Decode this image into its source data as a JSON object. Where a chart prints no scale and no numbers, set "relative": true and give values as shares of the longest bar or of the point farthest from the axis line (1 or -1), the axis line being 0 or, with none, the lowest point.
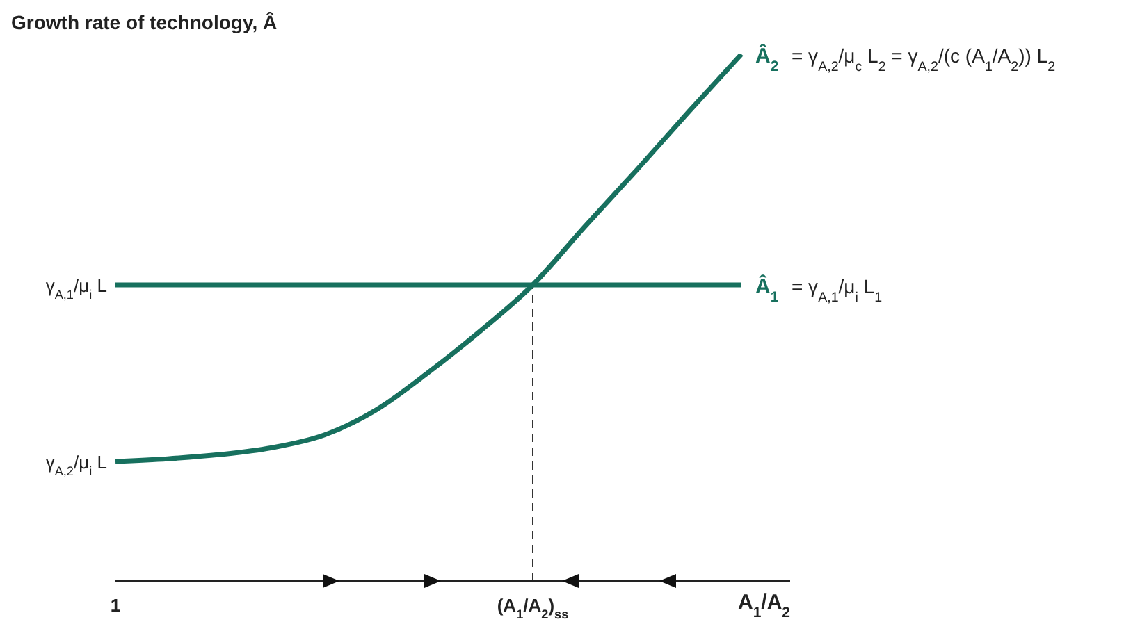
{
  "chart_data": {
    "type": "line",
    "relative": true,
    "ylabel": "Growth rate of technology, Â",
    "xlabel": "A$_{1}$/A$_{2}$",
    "marker": "none",
    "categories": [
      "1",
      null,
      null,
      null,
      null,
      null,
      null,
      null,
      "(A$_{1}$/A$_{2}$)$_{ss}$",
      null,
      null,
      null,
      null
    ],
    "series": [
      {
        "name": "Â$_{1}$",
        "color": "#17705e",
        "values": [
          0.562,
          0.562,
          0.562,
          0.562,
          0.562,
          0.562,
          0.562,
          0.562,
          0.562,
          0.562,
          0.562,
          0.562,
          0.562
        ]
      },
      {
        "name": "Â$_{2}$",
        "color": "#17705e",
        "values": [
          0.227,
          0.232,
          0.24,
          0.253,
          0.277,
          0.325,
          0.396,
          0.475,
          0.562,
          0.673,
          0.781,
          0.892,
          1
        ]
      }
    ],
    "ref_lines": [
      {
        "axis": "x",
        "value": "(A$_{1}$/A$_{2}$)$_{ss}$",
        "line_style": "dashed",
        "color": "#333333"
      }
    ],
    "annotations": [
      "= γ$_{A,1}$/μ$_{i}$ L$_{1}$",
      "= γ$_{A,2}$/μ$_{c}$ L$_{2}$ = γ$_{A,2}$/(c (A$_{1}$/A$_{2}$)) L$_{2}$",
      {
        "text": "γ$_{A,1}$/μ$_{i}$ L",
        "x": "1",
        "y": 0.562
      },
      {
        "text": "γ$_{A,2}$/μ$_{i}$ L",
        "x": "1",
        "y": 0.227
      }
    ]
  }
}
